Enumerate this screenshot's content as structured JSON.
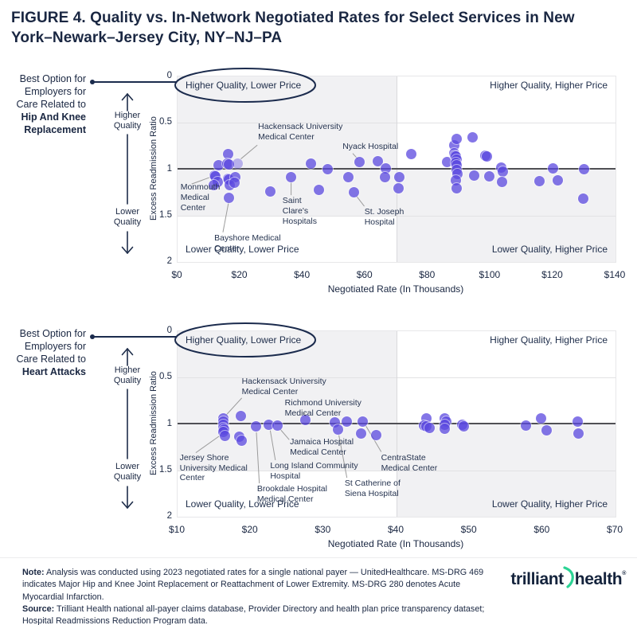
{
  "title": "FIGURE 4. Quality vs. In-Network Negotiated Rates for Select Services in New York–Newark–Jersey City, NY–NJ–PA",
  "colors": {
    "dot_purple": "#5b49e0",
    "dot_rendered": "#8678e8",
    "dot_light": "#c0b6f1",
    "accent_navy": "#1b2b4d",
    "title_navy": "#1a2742",
    "quadrant_shade": "#f1f1f3",
    "reference_line": "#505055",
    "leader_line": "#9b9b9b",
    "logo_green": "#2bd394"
  },
  "chart_data": [
    {
      "type": "scatter",
      "side_label": {
        "lines": [
          "Best Option for",
          "Employers for",
          "Care Related to",
          "Hip And Knee",
          "Replacement"
        ],
        "bold_from": 3
      },
      "quality_axis": {
        "higher": "Higher Quality",
        "lower": "Lower Quality"
      },
      "ylabel": "Excess Readmission Ratio",
      "xlabel": "Negotiated Rate (In Thousands)",
      "x_ticks": [
        "$0",
        "$20",
        "$40",
        "$60",
        "$80",
        "$100",
        "$120",
        "$140"
      ],
      "x_tick_values": [
        0,
        20,
        40,
        60,
        80,
        100,
        120,
        140
      ],
      "x_range": [
        0,
        140
      ],
      "y_ticks": [
        "0",
        "0.5",
        "1",
        "1.5",
        "2"
      ],
      "y_tick_values": [
        0,
        0.5,
        1,
        1.5,
        2
      ],
      "y_range": [
        0,
        2
      ],
      "reference_line_y": 1,
      "divider_x": 70,
      "grid_y": [
        0.5,
        1.5
      ],
      "quadrant_labels": {
        "tl": "Higher Quality, Lower Price",
        "tr": "Higher Quality, Higher Price",
        "bl": "Lower Quality, Lower Price",
        "br": "Lower Quality, Higher Price"
      },
      "circled_quadrant": "tl",
      "points": [
        [
          13.2,
          0.96
        ],
        [
          16.2,
          0.84
        ],
        [
          15.9,
          0.94
        ],
        [
          16.4,
          0.95
        ],
        [
          11.9,
          1.07
        ],
        [
          12.1,
          1.08
        ],
        [
          12.8,
          1.14
        ],
        [
          11.5,
          1.17
        ],
        [
          16.2,
          1.1
        ],
        [
          16.4,
          1.11
        ],
        [
          18.5,
          1.09
        ],
        [
          16.6,
          1.17
        ],
        [
          18.3,
          1.15
        ],
        [
          16.4,
          1.31
        ],
        [
          29.7,
          1.24
        ],
        [
          36.3,
          1.09
        ],
        [
          42.6,
          0.94
        ],
        [
          45.2,
          1.22
        ],
        [
          48.1,
          1.0
        ],
        [
          54.7,
          1.09
        ],
        [
          58.1,
          0.92
        ],
        [
          56.4,
          1.25
        ],
        [
          64.1,
          0.91
        ],
        [
          66.5,
          0.99
        ],
        [
          66.2,
          1.09
        ],
        [
          70.9,
          1.09
        ],
        [
          70.6,
          1.21
        ],
        [
          74.7,
          0.84
        ],
        [
          86.1,
          0.92
        ],
        [
          88.4,
          0.74
        ],
        [
          89.1,
          0.67
        ],
        [
          88.5,
          0.83
        ],
        [
          88.7,
          0.85
        ],
        [
          89.0,
          0.86
        ],
        [
          89.3,
          0.9
        ],
        [
          88.9,
          0.93
        ],
        [
          89.1,
          0.96
        ],
        [
          89.3,
          1.01
        ],
        [
          89.5,
          1.05
        ],
        [
          88.9,
          1.12
        ],
        [
          89.1,
          1.21
        ],
        [
          94.2,
          0.66
        ],
        [
          98.5,
          0.85
        ],
        [
          98.8,
          0.86
        ],
        [
          94.9,
          1.07
        ],
        [
          99.7,
          1.08
        ],
        [
          103.5,
          0.98
        ],
        [
          104.0,
          1.03
        ],
        [
          103.7,
          1.14
        ],
        [
          115.8,
          1.13
        ],
        [
          119.9,
          0.99
        ],
        [
          121.6,
          1.12
        ],
        [
          129.9,
          1.0
        ],
        [
          129.6,
          1.32
        ]
      ],
      "light_points": [
        [
          19.3,
          0.94
        ]
      ],
      "annotations": [
        {
          "lines": [
            "Hackensack University",
            "Medical Center"
          ],
          "label_x": 26.0,
          "label_y": 0.5,
          "leader": [
            25.5,
            0.74,
            20.2,
            0.89
          ],
          "target": [
            19.3,
            0.94
          ]
        },
        {
          "lines": [
            "Nyack Hospital"
          ],
          "label_x": 53.0,
          "label_y": 0.71,
          "leader": [
            56.0,
            0.83,
            57.6,
            0.89
          ],
          "target": [
            58.1,
            0.92
          ]
        },
        {
          "lines": [
            "Monmouth",
            "Medical",
            "Center"
          ],
          "label_x": 1.2,
          "label_y": 1.15,
          "leader": [
            4.5,
            1.16,
            11.0,
            1.08
          ],
          "target": [
            11.9,
            1.07
          ]
        },
        {
          "lines": [
            "Saint",
            "Clare's",
            "Hospitals"
          ],
          "label_x": 33.8,
          "label_y": 1.3,
          "leader": [
            36.3,
            1.28,
            36.3,
            1.14
          ],
          "target": [
            36.3,
            1.09
          ]
        },
        {
          "lines": [
            "St. Joseph",
            "Hospital"
          ],
          "label_x": 60.0,
          "label_y": 1.42,
          "leader": [
            59.7,
            1.4,
            57.2,
            1.29
          ],
          "target": [
            56.4,
            1.25
          ]
        },
        {
          "lines": [
            "Bayshore Medical",
            "Center"
          ],
          "label_x": 12.0,
          "label_y": 1.7,
          "leader": [
            14.5,
            1.68,
            16.3,
            1.36
          ],
          "target": [
            16.4,
            1.31
          ]
        }
      ]
    },
    {
      "type": "scatter",
      "side_label": {
        "lines": [
          "Best Option for",
          "Employers for",
          "Care Related to",
          "Heart Attacks"
        ],
        "bold_from": 3
      },
      "quality_axis": {
        "higher": "Higher Quality",
        "lower": "Lower Quality"
      },
      "ylabel": "Excess Readmission Ratio",
      "xlabel": "Negotiated Rate (In Thousands)",
      "x_ticks": [
        "$10",
        "$20",
        "$30",
        "$40",
        "$50",
        "$60",
        "$70"
      ],
      "x_tick_values": [
        10,
        20,
        30,
        40,
        50,
        60,
        70
      ],
      "x_range": [
        10,
        70
      ],
      "y_ticks": [
        "0",
        "0.5",
        "1",
        "1.5",
        "2"
      ],
      "y_tick_values": [
        0,
        0.5,
        1,
        1.5,
        2
      ],
      "y_range": [
        0,
        2
      ],
      "reference_line_y": 1,
      "divider_x": 40,
      "grid_y": [
        0.5,
        1.5
      ],
      "quadrant_labels": {
        "tl": "Higher Quality, Lower Price",
        "tr": "Higher Quality, Higher Price",
        "bl": "Lower Quality, Lower Price",
        "br": "Lower Quality, Higher Price"
      },
      "circled_quadrant": "tl",
      "points": [
        [
          16.3,
          0.94
        ],
        [
          16.3,
          0.97
        ],
        [
          16.3,
          1.01
        ],
        [
          16.25,
          1.04
        ],
        [
          16.35,
          1.06
        ],
        [
          16.3,
          1.09
        ],
        [
          16.5,
          1.13
        ],
        [
          18.7,
          0.91
        ],
        [
          18.5,
          1.14
        ],
        [
          18.8,
          1.18
        ],
        [
          20.7,
          1.03
        ],
        [
          22.5,
          1.01
        ],
        [
          23.7,
          1.02
        ],
        [
          27.5,
          0.96
        ],
        [
          31.5,
          0.98
        ],
        [
          32.0,
          1.06
        ],
        [
          33.2,
          0.97
        ],
        [
          35.4,
          0.97
        ],
        [
          35.1,
          1.1
        ],
        [
          37.2,
          1.12
        ],
        [
          44.1,
          0.94
        ],
        [
          43.8,
          1.02
        ],
        [
          44.1,
          1.03
        ],
        [
          44.5,
          1.04
        ],
        [
          46.6,
          0.94
        ],
        [
          46.8,
          0.97
        ],
        [
          46.6,
          1.01
        ],
        [
          46.6,
          1.05
        ],
        [
          49.0,
          1.01
        ],
        [
          49.2,
          1.03
        ],
        [
          57.7,
          1.02
        ],
        [
          59.8,
          0.94
        ],
        [
          60.6,
          1.07
        ],
        [
          64.8,
          0.97
        ],
        [
          64.9,
          1.1
        ]
      ],
      "light_points": [],
      "annotations": [
        {
          "lines": [
            "Hackensack University",
            "Medical Center"
          ],
          "label_x": 18.9,
          "label_y": 0.5,
          "leader": [
            18.8,
            0.72,
            16.7,
            0.9
          ],
          "target": [
            16.3,
            0.94
          ]
        },
        {
          "lines": [
            "Richmond University",
            "Medical Center"
          ],
          "label_x": 24.8,
          "label_y": 0.73,
          "leader": [
            27.4,
            0.88,
            27.5,
            0.92
          ],
          "target": [
            27.5,
            0.96
          ]
        },
        {
          "lines": [
            "Jersey Shore",
            "University Medical",
            "Center"
          ],
          "label_x": 10.4,
          "label_y": 1.32,
          "leader": [
            12.5,
            1.31,
            15.9,
            1.12
          ],
          "target": [
            16.3,
            1.09
          ]
        },
        {
          "lines": [
            "Brookdale Hospital",
            "Medical Center"
          ],
          "label_x": 21.0,
          "label_y": 1.66,
          "leader": [
            21.2,
            1.64,
            20.8,
            1.09
          ],
          "target": [
            20.7,
            1.03
          ]
        },
        {
          "lines": [
            "Long Island Community",
            "Hospital"
          ],
          "label_x": 22.8,
          "label_y": 1.41,
          "leader": [
            23.4,
            1.39,
            22.7,
            1.07
          ],
          "target": [
            22.5,
            1.01
          ]
        },
        {
          "lines": [
            "Jamaica Hospital",
            "Medical Center"
          ],
          "label_x": 25.5,
          "label_y": 1.15,
          "leader": [
            25.3,
            1.17,
            24.1,
            1.06
          ],
          "target": [
            23.7,
            1.02
          ]
        },
        {
          "lines": [
            "St Catherine of",
            "Siena Hospital"
          ],
          "label_x": 33.0,
          "label_y": 1.6,
          "leader": [
            33.2,
            1.58,
            32.1,
            1.12
          ],
          "target": [
            32.0,
            1.06
          ]
        },
        {
          "lines": [
            "CentraState",
            "Medical Center"
          ],
          "label_x": 38.0,
          "label_y": 1.32,
          "leader": [
            37.9,
            1.3,
            35.8,
            1.02
          ],
          "target": [
            35.4,
            0.97
          ]
        }
      ]
    }
  ],
  "footer": {
    "note_label": "Note:",
    "note_text": " Analysis was conducted using 2023 negotiated rates for a single national payer — UnitedHealthcare. MS-DRG 469 indicates Major Hip and Knee Joint Replacement or Reattachment of Lower Extremity. MS-DRG 280 denotes Acute Myocardial Infarction.",
    "source_label": "Source:",
    "source_text": " Trilliant Health national all-payer claims database, Provider Directory and health plan price transparency dataset; Hospital Readmissions Reduction Program data.",
    "logo_word_1": "trilliant",
    "logo_word_2": "health",
    "logo_mark": "®"
  }
}
